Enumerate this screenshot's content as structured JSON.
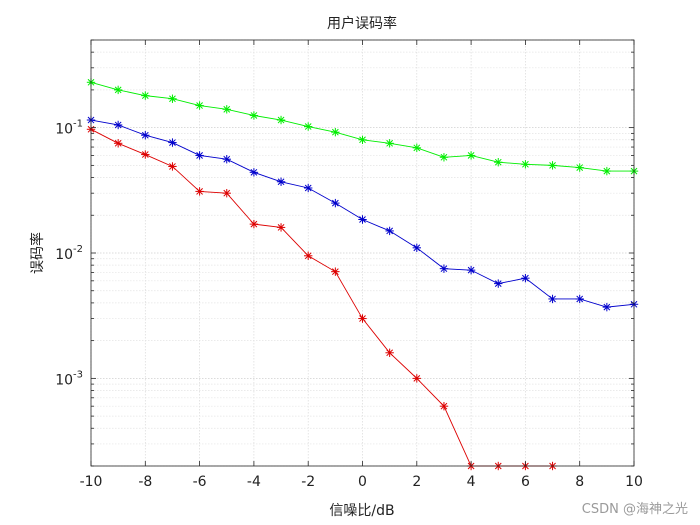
{
  "chart_data": {
    "type": "line",
    "title": "用户误码率",
    "xlabel": "信噪比/dB",
    "ylabel": "误码率",
    "x": [
      -10,
      -9,
      -8,
      -7,
      -6,
      -5,
      -4,
      -3,
      -2,
      -1,
      0,
      1,
      2,
      3,
      4,
      5,
      6,
      7,
      8,
      9,
      10
    ],
    "xlim": [
      -10,
      10
    ],
    "ylim": [
      0.0002,
      0.5
    ],
    "yscale": "log",
    "grid": true,
    "xticks": [
      "-10",
      "-8",
      "-6",
      "-4",
      "-2",
      "0",
      "2",
      "4",
      "6",
      "8",
      "10"
    ],
    "yticks": [
      {
        "value": 0.1,
        "base": "10",
        "exp": "-1"
      },
      {
        "value": 0.01,
        "base": "10",
        "exp": "-2"
      },
      {
        "value": 0.001,
        "base": "10",
        "exp": "-3"
      }
    ],
    "series": [
      {
        "color": "#00ee00",
        "marker": "*",
        "values": [
          0.23,
          0.2,
          0.18,
          0.17,
          0.15,
          0.14,
          0.125,
          0.115,
          0.102,
          0.092,
          0.08,
          0.075,
          0.069,
          0.058,
          0.06,
          0.053,
          0.051,
          0.05,
          0.048,
          0.045,
          0.045
        ]
      },
      {
        "color": "#0000cc",
        "marker": "*",
        "values": [
          0.115,
          0.105,
          0.087,
          0.076,
          0.06,
          0.056,
          0.044,
          0.037,
          0.033,
          0.025,
          0.0185,
          0.015,
          0.011,
          0.0075,
          0.0073,
          0.0057,
          0.0063,
          0.0043,
          0.0043,
          0.0037,
          0.0039
        ]
      },
      {
        "color": "#dd0000",
        "marker": "*",
        "values": [
          0.097,
          0.075,
          0.061,
          0.049,
          0.031,
          0.03,
          0.017,
          0.016,
          0.0095,
          0.0071,
          0.003,
          0.0016,
          0.001,
          0.0006,
          0.0002,
          0.0002,
          0.0002,
          0.0002,
          null,
          null,
          null
        ]
      }
    ]
  },
  "watermark": "CSDN @海神之光"
}
